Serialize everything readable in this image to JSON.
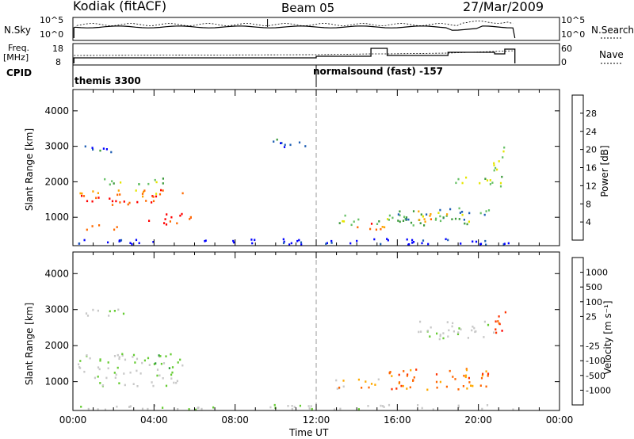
{
  "header": {
    "station": "Kodiak (fitACF)",
    "beam": "Beam 05",
    "date": "27/Mar/2009"
  },
  "strips": {
    "nsky_label": "N.Sky",
    "nsky_ticks": [
      "10^5",
      "10^0"
    ],
    "nsearch_label": "N.Search",
    "nsearch_ticks": [
      "10^5",
      "10^0"
    ],
    "freq_label": "Freq.",
    "freq_unit": "[MHz]",
    "freq_ticks": [
      "18",
      "8"
    ],
    "nave_label": "Nave",
    "nave_ticks": [
      "60",
      "0"
    ],
    "cpid_label": "CPID",
    "cpid_modes": [
      {
        "name": "themis 3300",
        "start_ut": 0.0
      },
      {
        "name": "normalsound (fast) -157",
        "start_ut": 12.0
      }
    ]
  },
  "colors": {
    "power": [
      "#0000ff",
      "#1f5fb4",
      "#3c9a3c",
      "#66c066",
      "#e5e500",
      "#ffa500",
      "#ff6a00",
      "#ff0000"
    ],
    "velocity": [
      "#1a32c8",
      "#227a60",
      "#2e9c36",
      "#66cc33",
      "#c8c8c8",
      "#c8c8c8",
      "#ffaa00",
      "#ff6600",
      "#ff3300",
      "#ff0000"
    ]
  },
  "chart_data": [
    {
      "type": "heatmap",
      "panel": "power",
      "ylabel": "Slant Range [km]",
      "yticks": [
        "1000",
        "2000",
        "3000",
        "4000"
      ],
      "ylim": [
        200,
        4600
      ],
      "xlim": [
        0,
        24
      ],
      "colorbar_label": "Power [dB]",
      "colorbar_ticks": [
        "4",
        "8",
        "12",
        "16",
        "20",
        "24",
        "28"
      ],
      "colorbar_range": [
        0,
        32
      ],
      "regions": [
        {
          "t0": 0.4,
          "t1": 2.6,
          "r0": 2850,
          "r1": 3050,
          "level": 1
        },
        {
          "t0": 0.2,
          "t1": 4.0,
          "r0": 1350,
          "r1": 1650,
          "level": 7
        },
        {
          "t0": 0.3,
          "t1": 4.5,
          "r0": 1650,
          "r1": 1800,
          "level": 5
        },
        {
          "t0": 1.5,
          "t1": 5.0,
          "r0": 1950,
          "r1": 2150,
          "level": 3
        },
        {
          "t0": 3.2,
          "t1": 5.6,
          "r0": 1600,
          "r1": 1800,
          "level": 6
        },
        {
          "t0": 3.6,
          "t1": 5.8,
          "r0": 800,
          "r1": 1150,
          "level": 7
        },
        {
          "t0": 0.5,
          "t1": 2.3,
          "r0": 650,
          "r1": 820,
          "level": 6
        },
        {
          "t0": 9.8,
          "t1": 11.6,
          "r0": 3000,
          "r1": 3300,
          "level": 1
        },
        {
          "t0": 12.8,
          "t1": 16.5,
          "r0": 800,
          "r1": 1100,
          "level": 3
        },
        {
          "t0": 14.0,
          "t1": 16.0,
          "r0": 650,
          "r1": 850,
          "level": 6
        },
        {
          "t0": 16.0,
          "t1": 20.5,
          "r0": 800,
          "r1": 1300,
          "level": 2
        },
        {
          "t0": 17.0,
          "t1": 19.5,
          "r0": 900,
          "r1": 1200,
          "level": 5
        },
        {
          "t0": 18.5,
          "t1": 21.2,
          "r0": 1900,
          "r1": 2200,
          "level": 3
        },
        {
          "t0": 20.6,
          "t1": 21.4,
          "r0": 2300,
          "r1": 3000,
          "level": 4
        },
        {
          "t0": 0.2,
          "t1": 21.8,
          "r0": 250,
          "r1": 420,
          "level": 0
        }
      ]
    },
    {
      "type": "heatmap",
      "panel": "velocity",
      "ylabel": "Slant Range [km]",
      "yticks": [
        "1000",
        "2000",
        "3000",
        "4000"
      ],
      "ylim": [
        200,
        4600
      ],
      "xlim": [
        0,
        24
      ],
      "xlabel": "Time UT",
      "xticks": [
        "00:00",
        "04:00",
        "08:00",
        "12:00",
        "16:00",
        "20:00",
        "00:00"
      ],
      "colorbar_label": "Velocity [m s⁻¹]",
      "colorbar_ticks": [
        "1000",
        "500",
        "100",
        "25",
        "-25",
        "-100",
        "-500",
        "-1000"
      ],
      "regions": [
        {
          "t0": 0.2,
          "t1": 4.5,
          "r0": 1300,
          "r1": 1800,
          "level": 4
        },
        {
          "t0": 1.0,
          "t1": 5.2,
          "r0": 900,
          "r1": 1300,
          "level": 4
        },
        {
          "t0": 0.4,
          "t1": 2.5,
          "r0": 2800,
          "r1": 3050,
          "level": 4
        },
        {
          "t0": 4.0,
          "t1": 5.5,
          "r0": 1400,
          "r1": 1800,
          "level": 3
        },
        {
          "t0": 12.8,
          "t1": 15.5,
          "r0": 800,
          "r1": 1100,
          "level": 6
        },
        {
          "t0": 15.5,
          "t1": 20.5,
          "r0": 800,
          "r1": 1400,
          "level": 7
        },
        {
          "t0": 17.0,
          "t1": 21.0,
          "r0": 2200,
          "r1": 2700,
          "level": 4
        },
        {
          "t0": 20.5,
          "t1": 21.3,
          "r0": 2300,
          "r1": 3000,
          "level": 8
        },
        {
          "t0": 0.2,
          "t1": 21.8,
          "r0": 250,
          "r1": 380,
          "level": 4
        }
      ]
    }
  ]
}
